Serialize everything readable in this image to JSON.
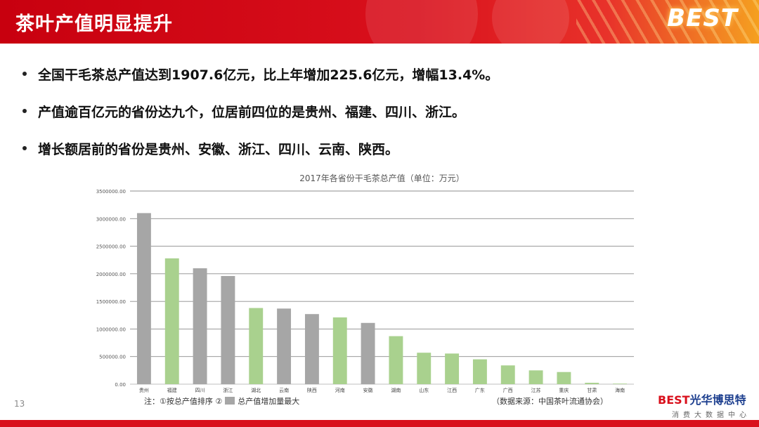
{
  "header": {
    "title": "茶叶产值明显提升",
    "brand": "BEST",
    "accent": "#d9101c"
  },
  "bullets": [
    "全国干毛茶总产值达到1907.6亿元，比上年增加225.6亿元，增幅13.4%。",
    "产值逾百亿元的省份达九个，位居前四位的是贵州、福建、四川、浙江。",
    "增长额居前的省份是贵州、安徽、浙江、四川、云南、陕西。"
  ],
  "chart_data": {
    "type": "bar",
    "title": "2017年各省份干毛茶总产值（单位：万元）",
    "categories": [
      "贵州",
      "福建",
      "四川",
      "浙江",
      "湖北",
      "云南",
      "陕西",
      "河南",
      "安徽",
      "湖南",
      "山东",
      "江西",
      "广东",
      "广西",
      "江苏",
      "重庆",
      "甘肃",
      "海南"
    ],
    "values": [
      3100000,
      2280000,
      2100000,
      1960000,
      1380000,
      1370000,
      1270000,
      1210000,
      1110000,
      870000,
      570000,
      555000,
      450000,
      340000,
      250000,
      220000,
      25000,
      10000
    ],
    "highlight": [
      false,
      true,
      false,
      false,
      true,
      false,
      false,
      true,
      false,
      true,
      true,
      true,
      true,
      true,
      true,
      true,
      true,
      true
    ],
    "colors": {
      "default": "#a6a6a6",
      "highlight": "#a9d18e"
    },
    "ylim": [
      0,
      3500000
    ],
    "yticks": [
      "0.00",
      "500000.00",
      "1000000.00",
      "1500000.00",
      "2000000.00",
      "2500000.00",
      "3000000.00",
      "3500000.00"
    ],
    "grid": true
  },
  "footnote": {
    "note_prefix": "注：①按总产值排序  ②",
    "note_suffix": "总产值增加量最大",
    "source": "（数据来源：中国茶叶流通协会）"
  },
  "page_number": "13",
  "footer_logo": {
    "brand": "BEST",
    "name": "光华博思特",
    "tagline": "消费大数据中心"
  }
}
